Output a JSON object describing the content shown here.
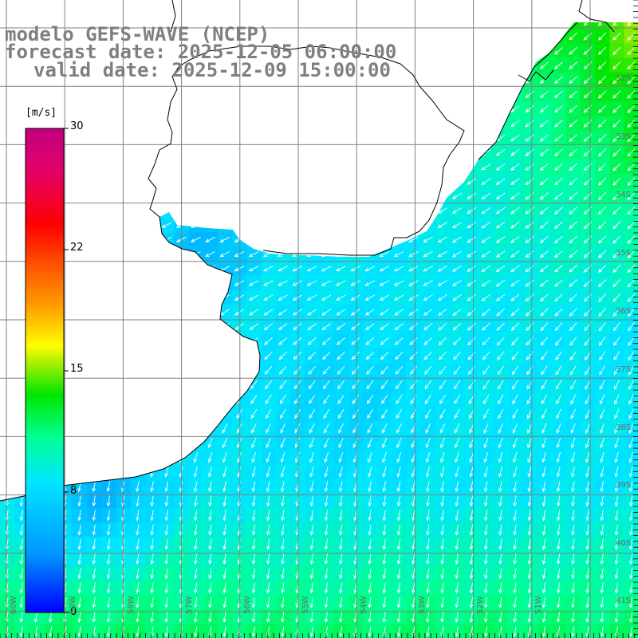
{
  "title": {
    "line1": "modelo GEFS-WAVE (NCEP)",
    "line2": "forecast date: 2025-12-05 06:00:00",
    "line3": "valid date: 2025-12-09 15:00:00"
  },
  "colorbar": {
    "unit": "[m/s]",
    "min": 0,
    "max": 30,
    "ticks": [
      "30",
      "22",
      "15",
      "8",
      "0"
    ],
    "colors": [
      "#0000ff",
      "#0096ff",
      "#00e6ff",
      "#00ff96",
      "#00e600",
      "#b4f000",
      "#ffff00",
      "#ffa000",
      "#ff5000",
      "#ff0000",
      "#e1006e",
      "#c0007c"
    ]
  },
  "map": {
    "lat_labels": [
      "32S",
      "33S",
      "34S",
      "35S",
      "36S",
      "37S",
      "38S",
      "39S",
      "40S",
      "41S"
    ],
    "lon_labels": [
      "60W",
      "59W",
      "58W",
      "57W",
      "56W",
      "55W",
      "54W",
      "53W",
      "52W",
      "51W"
    ],
    "wind_direction_note": "arrows show wind direction",
    "colors": {
      "land": "#ffffff",
      "coast": "#000000",
      "grid": "#808080",
      "arrow": "#ffffff",
      "label": "#7f7f7f"
    }
  }
}
